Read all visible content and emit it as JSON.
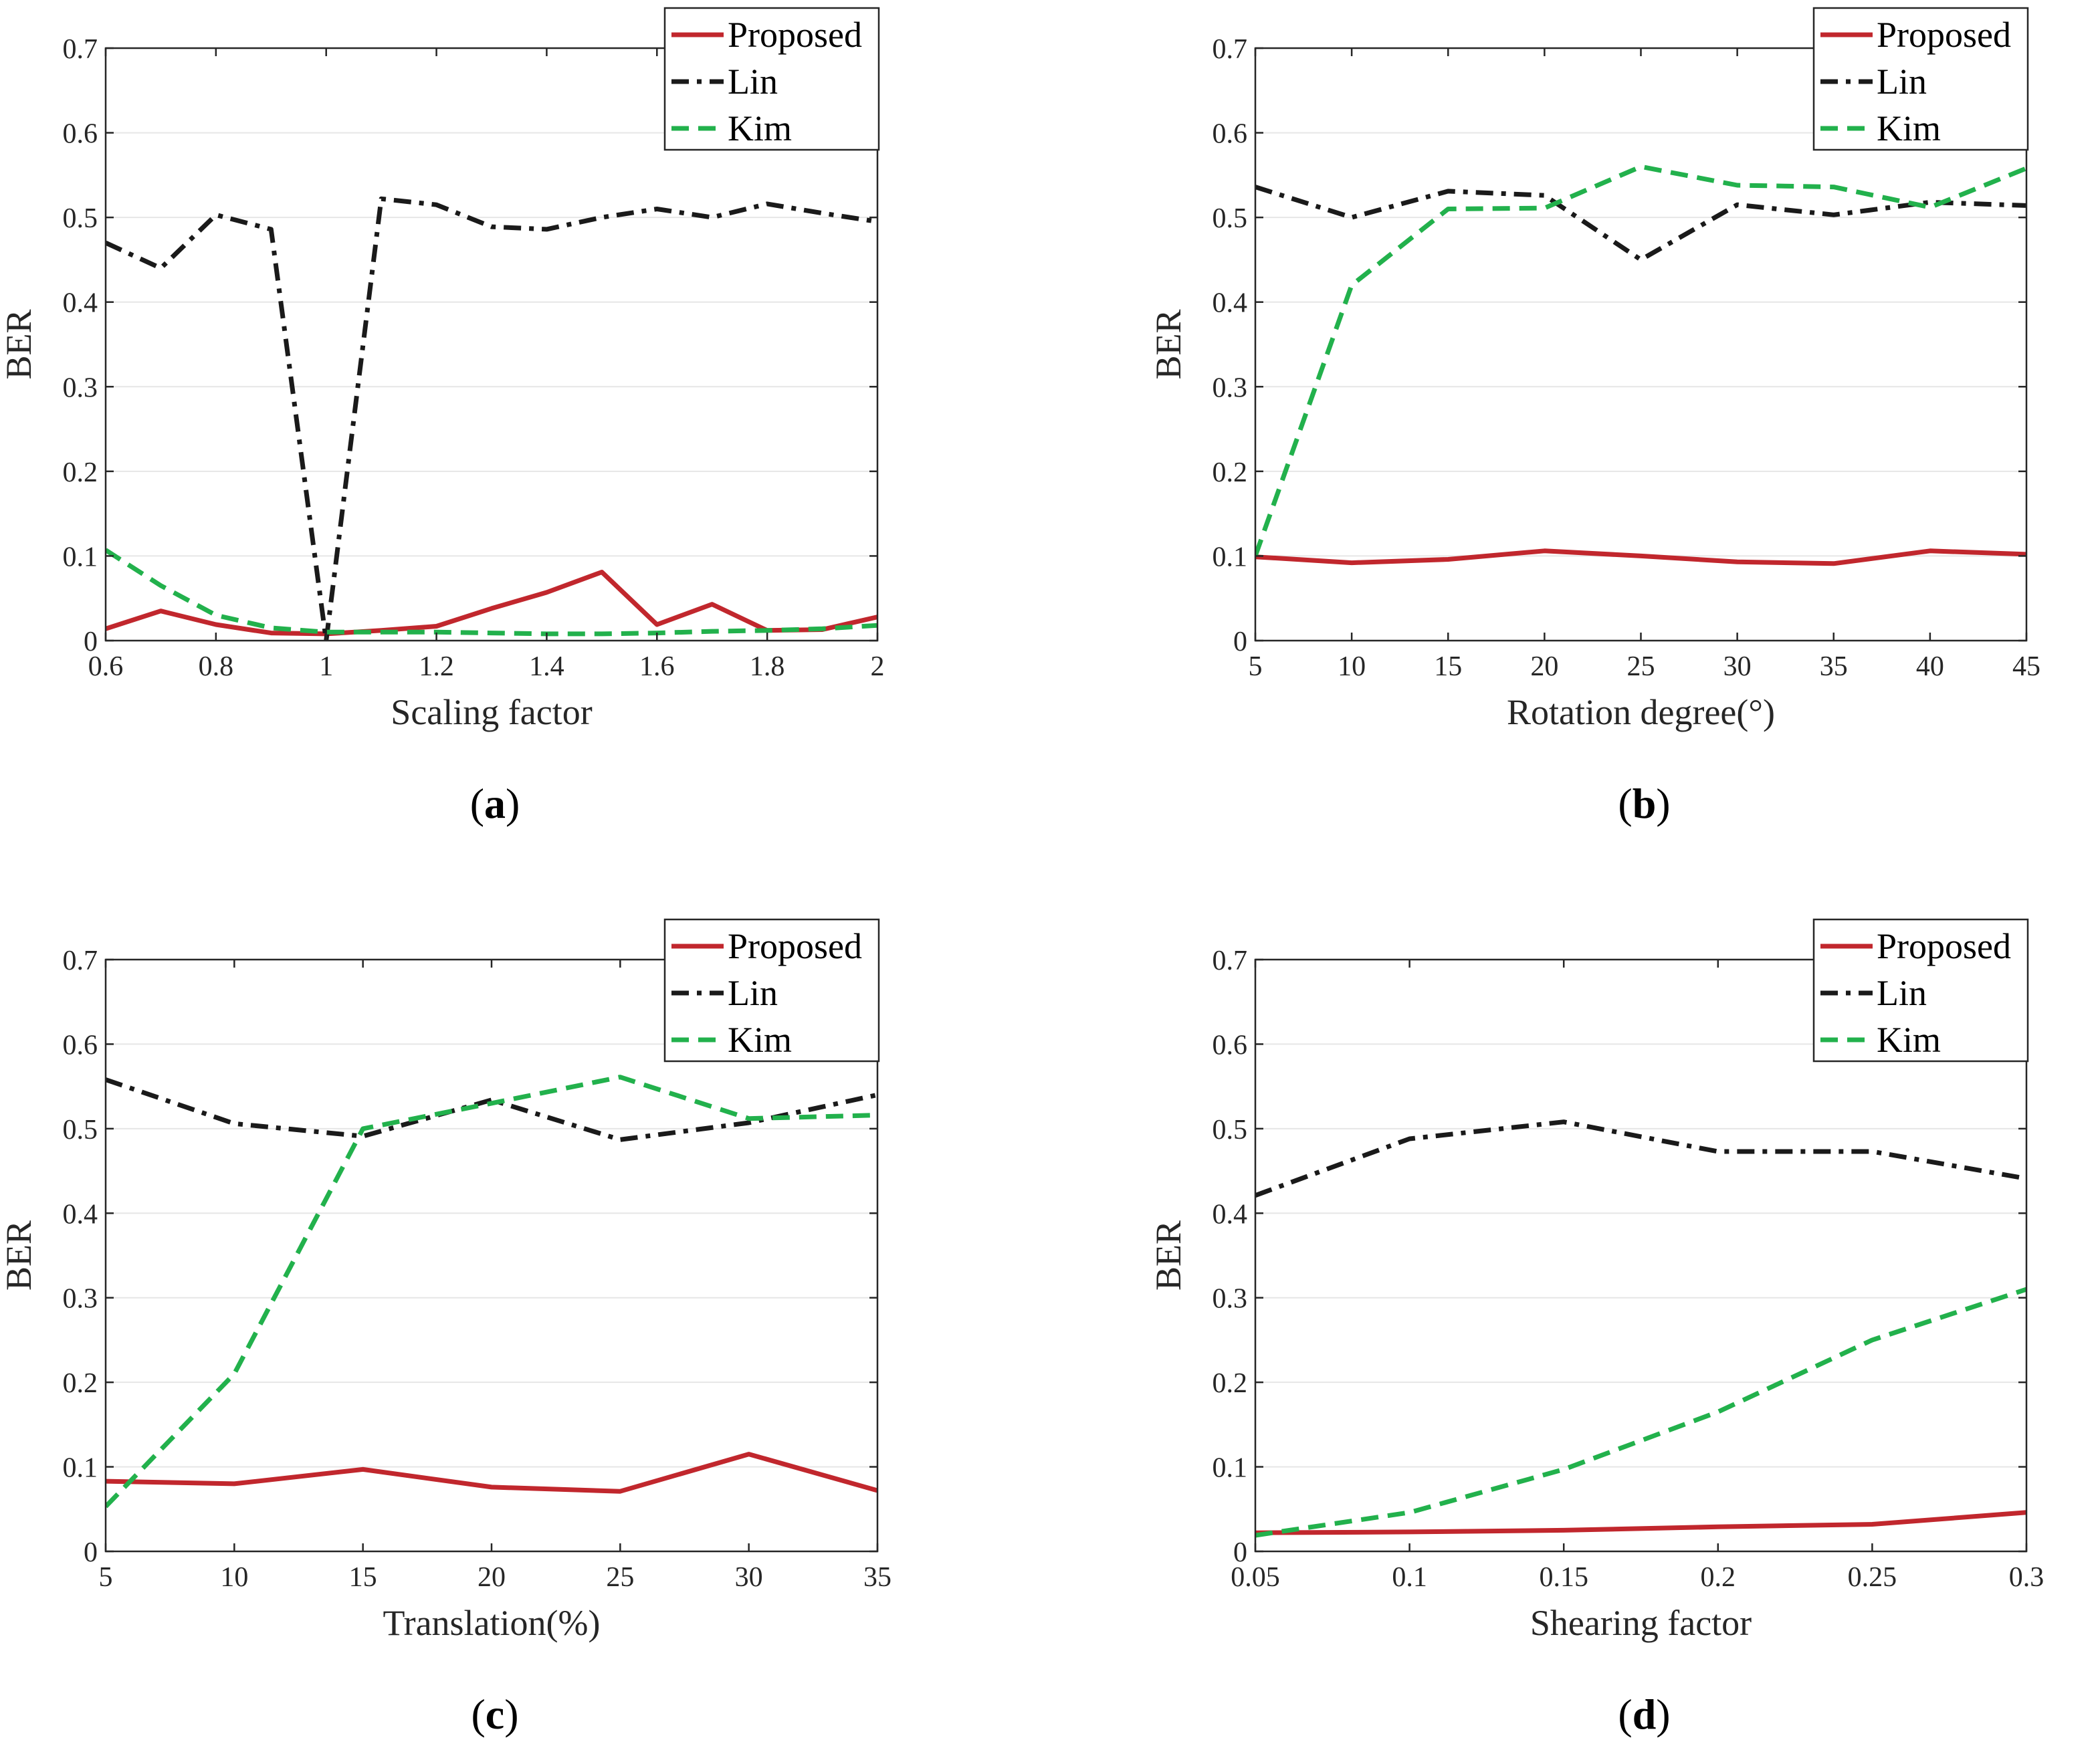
{
  "colors": {
    "Proposed": "#c1272d",
    "Lin": "#1a1a1a",
    "Kim": "#22b14c",
    "axis": "#262626",
    "grid": "#e6e6e6"
  },
  "chart_data": [
    {
      "type": "line",
      "caption": {
        "letter": "a"
      },
      "xlabel": "Scaling factor",
      "ylabel": "BER",
      "xlim": [
        0.6,
        2
      ],
      "ylim": [
        0,
        0.7
      ],
      "xticks": [
        0.6,
        0.8,
        1,
        1.2,
        1.4,
        1.6,
        1.8,
        2
      ],
      "xtick_labels": [
        "0.6",
        "0.8",
        "1",
        "1.2",
        "1.4",
        "1.6",
        "1.8",
        "2"
      ],
      "yticks": [
        0,
        0.1,
        0.2,
        0.3,
        0.4,
        0.5,
        0.6,
        0.7
      ],
      "ytick_labels": [
        "0",
        "0.1",
        "0.2",
        "0.3",
        "0.4",
        "0.5",
        "0.6",
        "0.7"
      ],
      "grid": "horizontal",
      "legend_position": "top-right",
      "series": [
        {
          "name": "Proposed",
          "style": "solid",
          "x": [
            0.6,
            0.7,
            0.8,
            0.9,
            1.0,
            1.1,
            1.2,
            1.3,
            1.4,
            1.5,
            1.6,
            1.7,
            1.8,
            1.9,
            2.0
          ],
          "y": [
            0.014,
            0.035,
            0.019,
            0.009,
            0.008,
            0.012,
            0.017,
            0.038,
            0.057,
            0.081,
            0.019,
            0.043,
            0.012,
            0.013,
            0.028
          ]
        },
        {
          "name": "Lin",
          "style": "dashdot",
          "x": [
            0.6,
            0.7,
            0.8,
            0.9,
            1.0,
            1.1,
            1.2,
            1.3,
            1.4,
            1.5,
            1.6,
            1.7,
            1.8,
            1.9,
            2.0
          ],
          "y": [
            0.47,
            0.44,
            0.503,
            0.486,
            0.0,
            0.522,
            0.515,
            0.489,
            0.486,
            0.5,
            0.51,
            0.5,
            0.516,
            0.505,
            0.495
          ]
        },
        {
          "name": "Kim",
          "style": "dashed",
          "x": [
            0.6,
            0.7,
            0.8,
            0.9,
            1.0,
            1.1,
            1.2,
            1.3,
            1.4,
            1.5,
            1.6,
            1.7,
            1.8,
            1.9,
            2.0
          ],
          "y": [
            0.107,
            0.065,
            0.03,
            0.015,
            0.01,
            0.01,
            0.01,
            0.009,
            0.008,
            0.008,
            0.009,
            0.011,
            0.012,
            0.014,
            0.018
          ]
        }
      ]
    },
    {
      "type": "line",
      "caption": {
        "letter": "b"
      },
      "xlabel": "Rotation degree(°)",
      "ylabel": "BER",
      "xlim": [
        5,
        45
      ],
      "ylim": [
        0,
        0.7
      ],
      "xticks": [
        5,
        10,
        15,
        20,
        25,
        30,
        35,
        40,
        45
      ],
      "xtick_labels": [
        "5",
        "10",
        "15",
        "20",
        "25",
        "30",
        "35",
        "40",
        "45"
      ],
      "yticks": [
        0,
        0.1,
        0.2,
        0.3,
        0.4,
        0.5,
        0.6,
        0.7
      ],
      "ytick_labels": [
        "0",
        "0.1",
        "0.2",
        "0.3",
        "0.4",
        "0.5",
        "0.6",
        "0.7"
      ],
      "grid": "horizontal",
      "legend_position": "top-right",
      "series": [
        {
          "name": "Proposed",
          "style": "solid",
          "x": [
            5,
            10,
            15,
            20,
            25,
            30,
            35,
            40,
            45
          ],
          "y": [
            0.099,
            0.092,
            0.096,
            0.106,
            0.1,
            0.093,
            0.091,
            0.106,
            0.102
          ]
        },
        {
          "name": "Lin",
          "style": "dashdot",
          "x": [
            5,
            10,
            15,
            20,
            25,
            30,
            35,
            40,
            45
          ],
          "y": [
            0.536,
            0.5,
            0.531,
            0.526,
            0.45,
            0.515,
            0.503,
            0.518,
            0.514
          ]
        },
        {
          "name": "Kim",
          "style": "dashed",
          "x": [
            5,
            10,
            15,
            20,
            25,
            30,
            35,
            40,
            45
          ],
          "y": [
            0.1,
            0.42,
            0.51,
            0.511,
            0.56,
            0.538,
            0.536,
            0.512,
            0.558
          ]
        }
      ]
    },
    {
      "type": "line",
      "caption": {
        "letter": "c"
      },
      "xlabel": "Translation(%)",
      "ylabel": "BER",
      "xlim": [
        5,
        35
      ],
      "ylim": [
        0,
        0.7
      ],
      "xticks": [
        5,
        10,
        15,
        20,
        25,
        30,
        35
      ],
      "xtick_labels": [
        "5",
        "10",
        "15",
        "20",
        "25",
        "30",
        "35"
      ],
      "yticks": [
        0,
        0.1,
        0.2,
        0.3,
        0.4,
        0.5,
        0.6,
        0.7
      ],
      "ytick_labels": [
        "0",
        "0.1",
        "0.2",
        "0.3",
        "0.4",
        "0.5",
        "0.6",
        "0.7"
      ],
      "grid": "horizontal",
      "legend_position": "top-right",
      "series": [
        {
          "name": "Proposed",
          "style": "solid",
          "x": [
            5,
            10,
            15,
            20,
            25,
            30,
            35
          ],
          "y": [
            0.083,
            0.08,
            0.097,
            0.076,
            0.071,
            0.115,
            0.072
          ]
        },
        {
          "name": "Lin",
          "style": "dashdot",
          "x": [
            5,
            10,
            15,
            20,
            25,
            30,
            35
          ],
          "y": [
            0.558,
            0.506,
            0.491,
            0.534,
            0.487,
            0.507,
            0.54
          ]
        },
        {
          "name": "Kim",
          "style": "dashed",
          "x": [
            5,
            10,
            15,
            20,
            25,
            30,
            35
          ],
          "y": [
            0.053,
            0.21,
            0.5,
            0.53,
            0.561,
            0.512,
            0.516
          ]
        }
      ]
    },
    {
      "type": "line",
      "caption": {
        "letter": "d"
      },
      "xlabel": "Shearing factor",
      "ylabel": "BER",
      "xlim": [
        0.05,
        0.3
      ],
      "ylim": [
        0,
        0.7
      ],
      "xticks": [
        0.05,
        0.1,
        0.15,
        0.2,
        0.25,
        0.3
      ],
      "xtick_labels": [
        "0.05",
        "0.1",
        "0.15",
        "0.2",
        "0.25",
        "0.3"
      ],
      "yticks": [
        0,
        0.1,
        0.2,
        0.3,
        0.4,
        0.5,
        0.6,
        0.7
      ],
      "ytick_labels": [
        "0",
        "0.1",
        "0.2",
        "0.3",
        "0.4",
        "0.5",
        "0.6",
        "0.7"
      ],
      "grid": "horizontal",
      "legend_position": "top-right",
      "series": [
        {
          "name": "Proposed",
          "style": "solid",
          "x": [
            0.05,
            0.1,
            0.15,
            0.2,
            0.25,
            0.3
          ],
          "y": [
            0.022,
            0.023,
            0.025,
            0.029,
            0.032,
            0.046
          ]
        },
        {
          "name": "Lin",
          "style": "dashdot",
          "x": [
            0.05,
            0.1,
            0.15,
            0.2,
            0.25,
            0.3
          ],
          "y": [
            0.421,
            0.488,
            0.508,
            0.473,
            0.473,
            0.441
          ]
        },
        {
          "name": "Kim",
          "style": "dashed",
          "x": [
            0.05,
            0.1,
            0.15,
            0.2,
            0.25,
            0.3
          ],
          "y": [
            0.019,
            0.046,
            0.097,
            0.165,
            0.25,
            0.31
          ]
        }
      ]
    }
  ]
}
